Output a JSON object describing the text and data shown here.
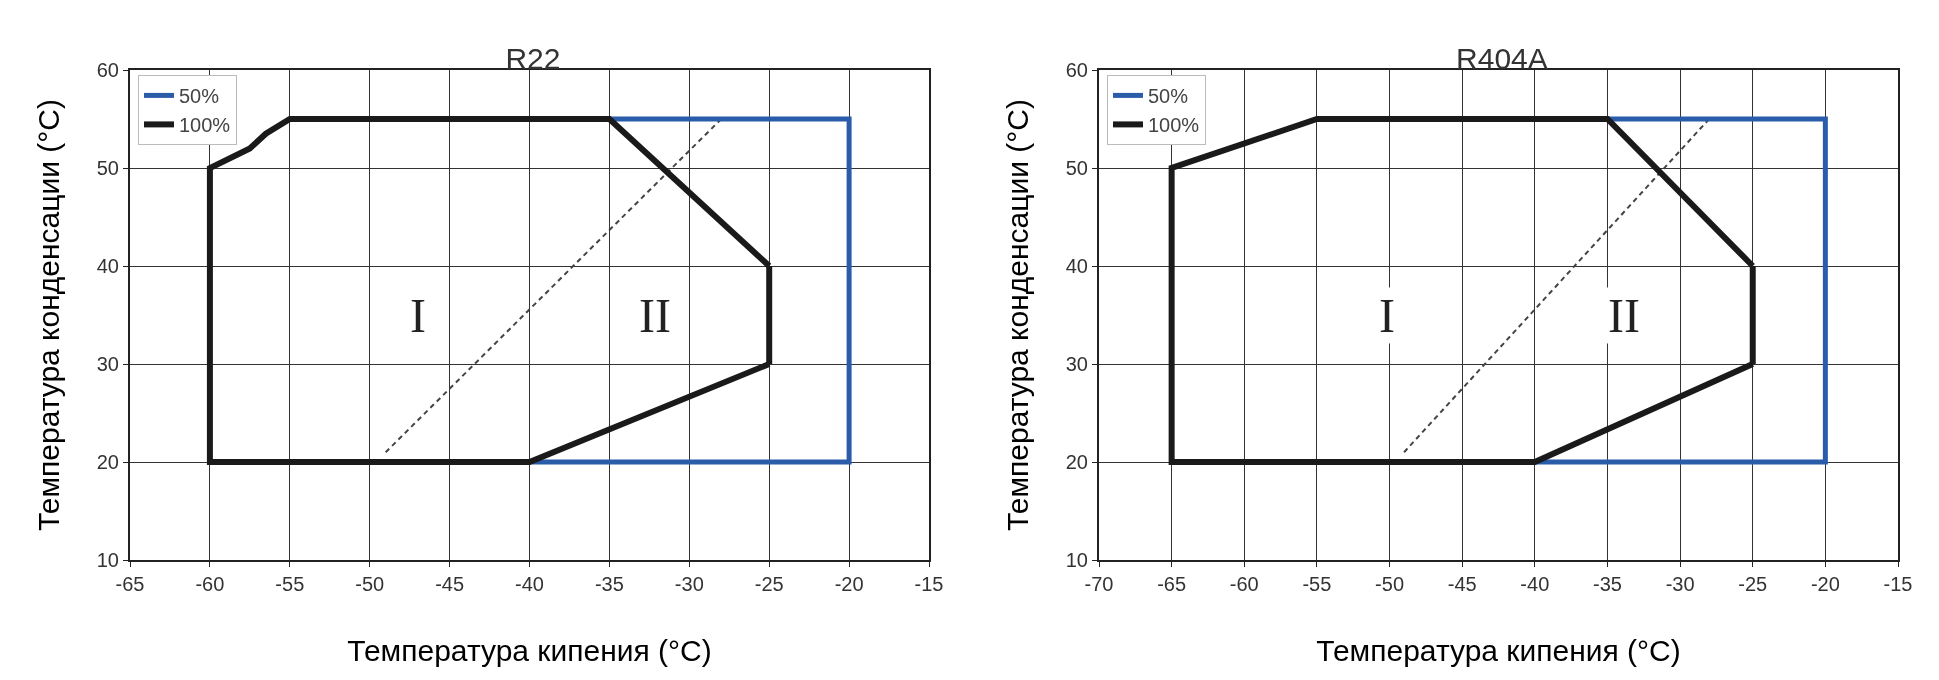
{
  "chart_data": [
    {
      "type": "line",
      "title": "R22",
      "xlabel": "Температура кипения (°C)",
      "ylabel": "Температура конденсации (°C)",
      "xlim": [
        -65,
        -15
      ],
      "xticks": [
        -65,
        -60,
        -55,
        -50,
        -45,
        -40,
        -35,
        -30,
        -25,
        -20,
        -15
      ],
      "ylim": [
        10,
        60
      ],
      "yticks": [
        10,
        20,
        30,
        40,
        50,
        60
      ],
      "grid": true,
      "legend": "top left",
      "marker": "none",
      "series": [
        {
          "color": "#444444",
          "line_style": "dashed",
          "x": [
            -49,
            -28
          ],
          "values": [
            21,
            55
          ]
        },
        {
          "name": "50%",
          "color": "#2a5caa",
          "x": [
            -40,
            -20,
            -20,
            -35
          ],
          "values": [
            20,
            20,
            55,
            55
          ]
        },
        {
          "name": "100%",
          "color": "#1a1a1a",
          "x": [
            -25,
            -40,
            -60,
            -60,
            -57.5,
            -56.5,
            -55,
            -35,
            -25
          ],
          "values": [
            30,
            20,
            20,
            50,
            52,
            53.5,
            55,
            55,
            40
          ]
        },
        {
          "color": "#1a1a1a",
          "x": [
            -25,
            -25
          ],
          "values": [
            40,
            30
          ]
        }
      ],
      "annotations": [
        "I",
        "II"
      ]
    },
    {
      "type": "line",
      "title": "R404A",
      "xlabel": "Температура кипения (°C)",
      "ylabel": "Температура конденсации (°C)",
      "xlim": [
        -70,
        -15
      ],
      "xticks": [
        -70,
        -65,
        -60,
        -55,
        -50,
        -45,
        -40,
        -35,
        -30,
        -25,
        -20,
        -15
      ],
      "ylim": [
        10,
        60
      ],
      "yticks": [
        10,
        20,
        30,
        40,
        50,
        60
      ],
      "grid": true,
      "legend": "top left",
      "marker": "none",
      "series": [
        {
          "color": "#444444",
          "line_style": "dashed",
          "x": [
            -49,
            -28
          ],
          "values": [
            21,
            55
          ]
        },
        {
          "name": "50%",
          "color": "#2a5caa",
          "x": [
            -40,
            -20,
            -20,
            -35
          ],
          "values": [
            20,
            20,
            55,
            55
          ]
        },
        {
          "name": "100%",
          "color": "#1a1a1a",
          "x": [
            -25,
            -40,
            -65,
            -65,
            -55,
            -35,
            -25
          ],
          "values": [
            30,
            20,
            20,
            50,
            55,
            55,
            40
          ]
        },
        {
          "color": "#1a1a1a",
          "x": [
            -25,
            -25
          ],
          "values": [
            40,
            30
          ]
        }
      ],
      "annotations": [
        "I",
        "II"
      ]
    }
  ]
}
